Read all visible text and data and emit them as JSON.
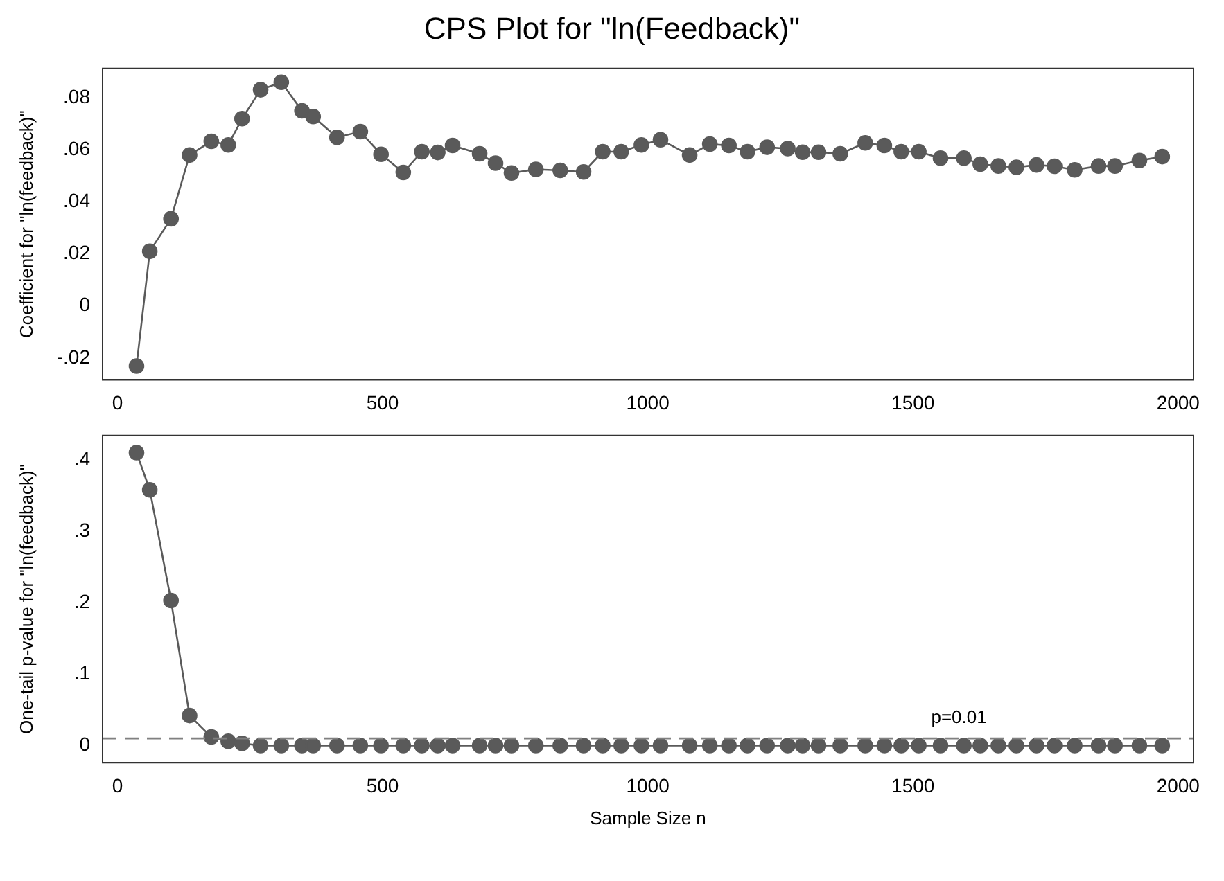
{
  "chart_data": [
    {
      "type": "line",
      "title": "CPS Plot for \"ln(Feedback)\"",
      "ylabel": "Coefficient for \"ln(feedback)\"",
      "x": [
        36,
        61,
        101,
        136,
        177,
        209,
        235,
        270,
        309,
        348,
        369,
        414,
        458,
        497,
        539,
        574,
        604,
        632,
        683,
        713,
        743,
        789,
        835,
        879,
        915,
        950,
        988,
        1024,
        1079,
        1117,
        1153,
        1188,
        1225,
        1264,
        1292,
        1322,
        1363,
        1410,
        1446,
        1478,
        1511,
        1552,
        1596,
        1627,
        1661,
        1695,
        1733,
        1767,
        1805,
        1850,
        1881,
        1927,
        1970
      ],
      "series": [
        {
          "color": "#5a5a5a",
          "values": [
            -0.0231,
            0.021,
            0.0335,
            0.058,
            0.0633,
            0.0619,
            0.072,
            0.0831,
            0.086,
            0.075,
            0.0728,
            0.0648,
            0.067,
            0.0583,
            0.0513,
            0.0593,
            0.059,
            0.0617,
            0.0585,
            0.0549,
            0.0511,
            0.0525,
            0.0521,
            0.0515,
            0.0593,
            0.0593,
            0.0619,
            0.0639,
            0.058,
            0.0622,
            0.0617,
            0.0593,
            0.061,
            0.0605,
            0.0591,
            0.0591,
            0.0585,
            0.0627,
            0.0617,
            0.0593,
            0.0593,
            0.0568,
            0.0568,
            0.0545,
            0.0538,
            0.0533,
            0.0542,
            0.0537,
            0.0523,
            0.0538,
            0.0538,
            0.0559,
            0.0574
          ]
        }
      ],
      "xlim": [
        -28,
        2029
      ],
      "xticks": [
        0,
        500,
        1000,
        1500,
        2000
      ],
      "ylim": [
        -0.0284,
        0.0913
      ],
      "yticks": [
        {
          "value": -0.02,
          "label": "-.02"
        },
        {
          "value": 0,
          "label": "0"
        },
        {
          "value": 0.02,
          "label": ".02"
        },
        {
          "value": 0.04,
          "label": ".04"
        },
        {
          "value": 0.06,
          "label": ".06"
        },
        {
          "value": 0.08,
          "label": ".08"
        }
      ],
      "grid": false,
      "legend": false,
      "marker": "circle",
      "line_style": "solid"
    },
    {
      "type": "line",
      "xlabel": "Sample Size n",
      "ylabel": "One-tail p-value for \"ln(feedback)\"",
      "x": [
        36,
        61,
        101,
        136,
        177,
        209,
        235,
        270,
        309,
        348,
        369,
        414,
        458,
        497,
        539,
        574,
        604,
        632,
        683,
        713,
        743,
        789,
        835,
        879,
        915,
        950,
        988,
        1024,
        1079,
        1117,
        1153,
        1188,
        1225,
        1264,
        1292,
        1322,
        1363,
        1410,
        1446,
        1478,
        1511,
        1552,
        1596,
        1627,
        1661,
        1695,
        1733,
        1767,
        1805,
        1850,
        1881,
        1927,
        1970
      ],
      "series": [
        {
          "color": "#5a5a5a",
          "values": [
            0.41,
            0.358,
            0.203,
            0.042,
            0.012,
            0.006,
            0.003,
            0,
            0,
            0,
            0,
            0,
            0,
            0,
            0,
            0,
            0,
            0,
            0,
            0,
            0,
            0,
            0,
            0,
            0,
            0,
            0,
            0,
            0,
            0,
            0,
            0,
            0,
            0,
            0,
            0,
            0,
            0,
            0,
            0,
            0,
            0,
            0,
            0,
            0,
            0,
            0,
            0,
            0,
            0,
            0,
            0,
            0
          ]
        }
      ],
      "xlim": [
        -28,
        2029
      ],
      "xticks": [
        0,
        500,
        1000,
        1500,
        2000
      ],
      "ylim": [
        -0.024,
        0.434
      ],
      "yticks": [
        {
          "value": 0,
          "label": "0"
        },
        {
          "value": 0.1,
          "label": ".1"
        },
        {
          "value": 0.2,
          "label": ".2"
        },
        {
          "value": 0.3,
          "label": ".3"
        },
        {
          "value": 0.4,
          "label": ".4"
        }
      ],
      "ref_lines": [
        {
          "axis": "y",
          "value": 0.01,
          "label": "p=0.01",
          "color": "#808080",
          "line_style": "dashed"
        }
      ],
      "grid": false,
      "legend": false,
      "marker": "circle",
      "line_style": "solid"
    }
  ]
}
